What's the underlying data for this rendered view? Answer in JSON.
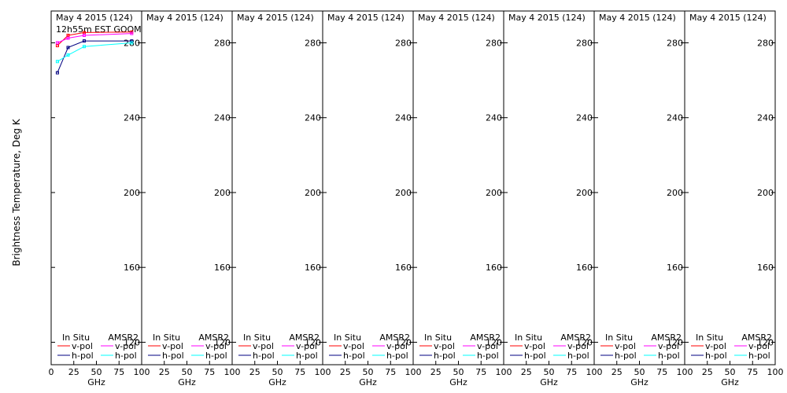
{
  "chart_data": {
    "type": "line",
    "ylabel": "Brightness Temperature, Deg K",
    "y_ticks": [
      120,
      160,
      200,
      240,
      280
    ],
    "ylim": [
      108,
      297
    ],
    "legend_headers": [
      "In Situ",
      "AMSR2"
    ],
    "legend_labels": [
      "v-pol",
      "h-pol",
      "v-pol",
      "h-pol"
    ],
    "colors": {
      "insitu_vpol": "#ff0000",
      "insitu_hpol": "#000080",
      "amsr2_vpol": "#ff00ff",
      "amsr2_hpol": "#00ffff",
      "frame": "#000000"
    },
    "panels": [
      {
        "title": "May 4 2015 (124)",
        "subtitle": "12h55m  EST GOOM",
        "xlabel": "GHz",
        "x_ticks": [
          "0",
          "25",
          "50",
          "75",
          "100"
        ],
        "xlim": [
          0,
          100
        ],
        "series": [
          {
            "key": "insitu_vpol",
            "x": [
              6.9,
              18.7,
              36.5,
              89.0
            ],
            "y": [
              278.5,
              284.0,
              285.5,
              285.8
            ]
          },
          {
            "key": "insitu_hpol",
            "x": [
              6.9,
              18.7,
              36.5,
              89.0
            ],
            "y": [
              264.0,
              277.5,
              281.0,
              281.0
            ]
          },
          {
            "key": "amsr2_vpol",
            "x": [
              6.9,
              18.7,
              36.5,
              89.0
            ],
            "y": [
              280.0,
              282.5,
              284.0,
              285.0
            ]
          },
          {
            "key": "amsr2_hpol",
            "x": [
              6.9,
              18.7,
              36.5,
              89.0
            ],
            "y": [
              270.0,
              273.5,
              278.0,
              280.0
            ]
          }
        ]
      },
      {
        "title": "May 4 2015 (124)",
        "subtitle": "",
        "xlabel": "GHz",
        "x_ticks": [
          "25",
          "50",
          "75",
          "100"
        ],
        "xlim": [
          0,
          100
        ],
        "series": []
      },
      {
        "title": "May 4 2015 (124)",
        "subtitle": "",
        "xlabel": "GHz",
        "x_ticks": [
          "25",
          "50",
          "75",
          "100"
        ],
        "xlim": [
          0,
          100
        ],
        "series": []
      },
      {
        "title": "May 4 2015 (124)",
        "subtitle": "",
        "xlabel": "GHz",
        "x_ticks": [
          "25",
          "50",
          "75",
          "100"
        ],
        "xlim": [
          0,
          100
        ],
        "series": []
      },
      {
        "title": "May 4 2015 (124)",
        "subtitle": "",
        "xlabel": "GHz",
        "x_ticks": [
          "25",
          "50",
          "75",
          "100"
        ],
        "xlim": [
          0,
          100
        ],
        "series": []
      },
      {
        "title": "May 4 2015 (124)",
        "subtitle": "",
        "xlabel": "GHz",
        "x_ticks": [
          "25",
          "50",
          "75",
          "100"
        ],
        "xlim": [
          0,
          100
        ],
        "series": []
      },
      {
        "title": "May 4 2015 (124)",
        "subtitle": "",
        "xlabel": "GHz",
        "x_ticks": [
          "25",
          "50",
          "75",
          "100"
        ],
        "xlim": [
          0,
          100
        ],
        "series": []
      },
      {
        "title": "May 4 2015 (124)",
        "subtitle": "",
        "xlabel": "GHz",
        "x_ticks": [
          "25",
          "50",
          "75",
          "100"
        ],
        "xlim": [
          0,
          100
        ],
        "series": []
      }
    ]
  }
}
